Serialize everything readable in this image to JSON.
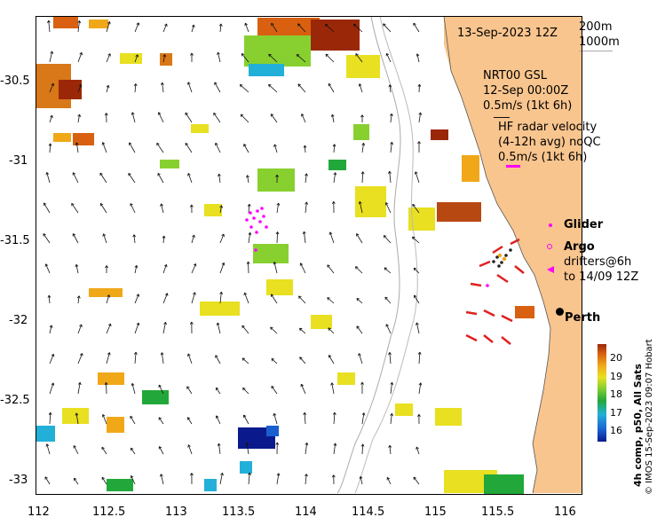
{
  "header": {
    "date": "13-Sep-2023 12Z",
    "depth_labels": [
      "200m",
      "1000m"
    ]
  },
  "legend": {
    "model": [
      "NRT00 GSL",
      "12-Sep 00:00Z",
      "0.5m/s (1kt 6h)"
    ],
    "hf_radar": [
      "HF radar velocity",
      "(4-12h avg) noQC",
      "0.5m/s (1kt 6h)"
    ],
    "glider": "Glider",
    "argo": "Argo",
    "drifters": [
      "drifters@6h",
      "to 14/09 12Z"
    ],
    "city": "Perth"
  },
  "colorbar": {
    "title": "4h comp, p50, All Sats",
    "ticks": [
      "16",
      "17",
      "18",
      "19",
      "20"
    ],
    "colors": [
      "#0a1a8c",
      "#1a5fd0",
      "#22b0d8",
      "#22a83a",
      "#88d030",
      "#e8e020",
      "#f0a818",
      "#d86010",
      "#9a2808"
    ]
  },
  "axes": {
    "x_ticks": [
      "112",
      "112.5",
      "113",
      "113.5",
      "114",
      "114.5",
      "115",
      "115.5",
      "116"
    ],
    "y_ticks": [
      "-30.5",
      "-31",
      "-31.5",
      "-32",
      "-32.5",
      "-33"
    ],
    "xlim": [
      112,
      116.2
    ],
    "ylim": [
      -33.1,
      -30.1
    ]
  },
  "credit": "© IMOS 15-Sep-2023 09:07 Hobart",
  "colors": {
    "land": "#f9c58e",
    "arrow": "#111111",
    "hf_radar_arrow": "#e02020",
    "glider": "#ff00ff",
    "isobath": "#aaaaaa"
  }
}
